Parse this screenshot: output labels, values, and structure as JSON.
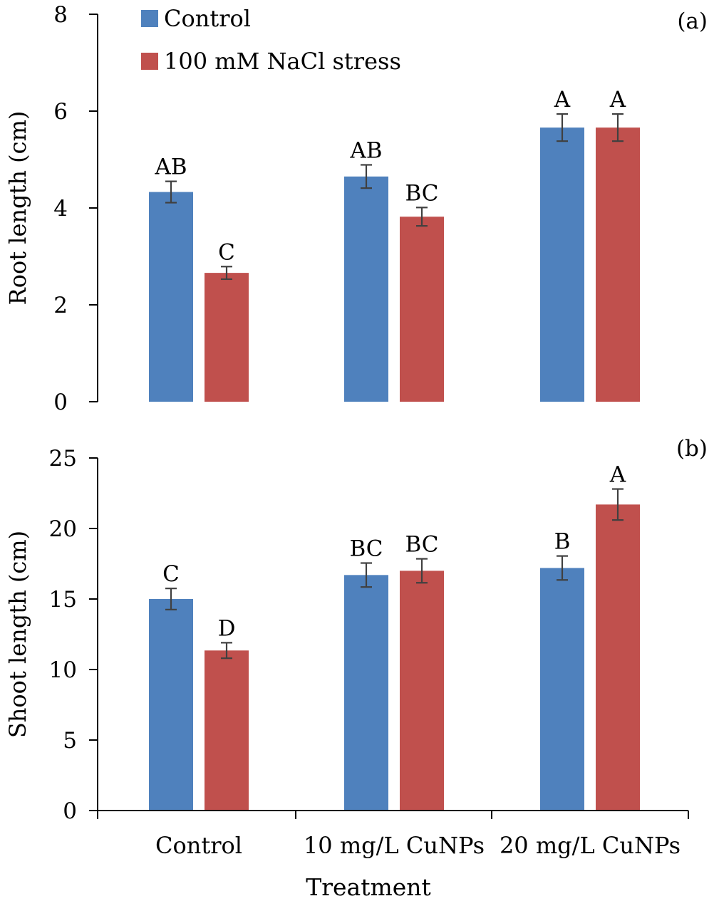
{
  "colors": {
    "control": "#4F81BD",
    "nacl": "#C0504D",
    "axis": "#000000",
    "error_bar": "#404040"
  },
  "legend": {
    "items": [
      {
        "label": "Control",
        "color_key": "control"
      },
      {
        "label": "100 mM NaCl stress",
        "color_key": "nacl"
      }
    ],
    "placement": "top-left"
  },
  "xlabel": "Treatment",
  "chart_data": [
    {
      "type": "bar",
      "panel_label": "(a)",
      "categories": [
        "Control",
        "10 mg/L CuNPs",
        "20 mg/L CuNPs"
      ],
      "ylabel": "Root length (cm)",
      "ylim": [
        0,
        8
      ],
      "yticks": [
        0,
        2,
        4,
        6,
        8
      ],
      "grid": false,
      "series": [
        {
          "name": "Control",
          "values": [
            4.33,
            4.65,
            5.66
          ],
          "errors": [
            0.22,
            0.24,
            0.28
          ],
          "letters": [
            "AB",
            "AB",
            "A"
          ]
        },
        {
          "name": "100 mM NaCl stress",
          "values": [
            2.66,
            3.82,
            5.66
          ],
          "errors": [
            0.13,
            0.19,
            0.28
          ],
          "letters": [
            "C",
            "BC",
            "A"
          ]
        }
      ]
    },
    {
      "type": "bar",
      "panel_label": "(b)",
      "categories": [
        "Control",
        "10 mg/L CuNPs",
        "20 mg/L CuNPs"
      ],
      "ylabel": "Shoot length (cm)",
      "ylim": [
        0,
        25
      ],
      "yticks": [
        0,
        5,
        10,
        15,
        20,
        25
      ],
      "grid": false,
      "series": [
        {
          "name": "Control",
          "values": [
            15.0,
            16.7,
            17.2
          ],
          "errors": [
            0.75,
            0.85,
            0.85
          ],
          "letters": [
            "C",
            "BC",
            "B"
          ]
        },
        {
          "name": "100 mM NaCl stress",
          "values": [
            11.35,
            17.0,
            21.7
          ],
          "errors": [
            0.55,
            0.85,
            1.1
          ],
          "letters": [
            "D",
            "BC",
            "A"
          ]
        }
      ]
    }
  ]
}
